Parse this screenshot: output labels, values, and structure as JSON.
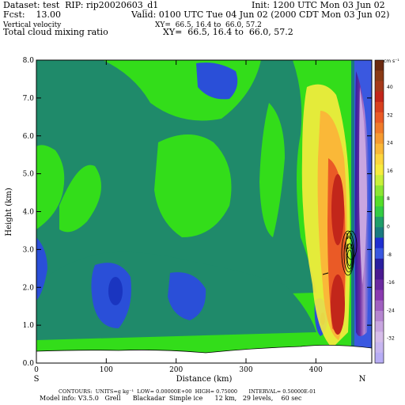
{
  "header": {
    "dataset": "Dataset: test  RIP: rip20020603_d1",
    "init": "Init: 1200 UTC Mon 03 Jun 02",
    "fcst": "Fcst:    13.00",
    "valid": "Valid: 0100 UTC Tue 04 Jun 02 (2000 CDT Mon 03 Jun 02)",
    "field1": "Vertical velocity",
    "xy1": "XY=  66.5, 16.4 to  66.0, 57.2",
    "field2": "Total cloud mixing ratio",
    "xy2": "XY=  66.5, 16.4 to  66.0, 57.2"
  },
  "footer": {
    "contours": "CONTOURS:  UNITS=g kg⁻¹  LOW= 0.00000E+00  HIGH= 0.75000       INTERVAL= 0.50000E-01",
    "model": "Model info: V3.5.0   Grell      Blackadar  Simple ice      12 km,   29 levels,    60 sec"
  },
  "colors": {
    "bg_green": "#33dd1a",
    "teal": "#1f8a6a",
    "blue": "#2a4fd8",
    "dark_blue": "#1a35c0",
    "terrain": "#ffffff"
  },
  "chart_data": {
    "type": "heatmap",
    "xlabel": "Distance (km)",
    "ylabel": "Height (km)",
    "xlim": [
      0,
      480
    ],
    "ylim": [
      0,
      8.0
    ],
    "x_ticks": [
      "0",
      "100",
      "200",
      "300",
      "400"
    ],
    "y_ticks": [
      "0.0",
      "1.0",
      "2.0",
      "3.0",
      "4.0",
      "5.0",
      "6.0",
      "7.0",
      "8.0"
    ],
    "endpoints": {
      "left": "S",
      "right": "N"
    },
    "colorbar": {
      "unit": "cm s⁻¹",
      "labels": [
        "40",
        "32",
        "24",
        "16",
        "8",
        "0",
        "-8",
        "-16",
        "-24",
        "-32"
      ],
      "colors": [
        "#6b2a10",
        "#8a3a15",
        "#a5391a",
        "#c2261a",
        "#d8401f",
        "#ea5a26",
        "#f07a2a",
        "#f59a30",
        "#fab838",
        "#fdd63e",
        "#f7ec3e",
        "#c9f03a",
        "#8ce634",
        "#55dd2a",
        "#33cc44",
        "#1f9e6a",
        "#1a7a80",
        "#1f2fd0",
        "#3a58e0",
        "#2a1fa0",
        "#4a1a90",
        "#6a2aa0",
        "#8a3ab0",
        "#a060c0",
        "#b585d0",
        "#c8a6e0",
        "#d6bdea",
        "#c7b6f0",
        "#b7adf5"
      ]
    },
    "annotations": {
      "max_label": "H",
      "max_value": ".44"
    }
  }
}
